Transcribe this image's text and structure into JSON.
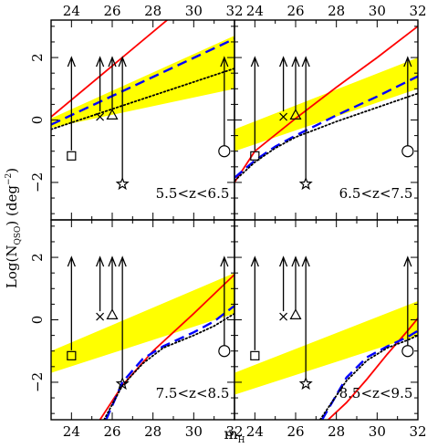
{
  "figure": {
    "xlabel": "m",
    "xlabel_sub": "H",
    "ylabel": "Log(N",
    "ylabel_sub": "QSO",
    "ylabel_tail": ")  (deg",
    "ylabel_sup": "−2",
    "ylabel_end": ")"
  },
  "axes": {
    "xlim": [
      23,
      32
    ],
    "ylim": [
      -3.2,
      3.2
    ],
    "xticks": [
      24,
      26,
      28,
      30,
      32
    ],
    "yticks": [
      -2,
      0,
      2
    ],
    "xtick_labels": [
      "24",
      "26",
      "28",
      "30",
      "32"
    ],
    "ytick_labels": [
      "−2",
      "0",
      "2"
    ]
  },
  "colors": {
    "band": "#ffff00",
    "red_line": "#ff0000",
    "blue_dashed": "#0000ff",
    "dotted": "#000000",
    "axes": "#000000"
  },
  "markers": [
    {
      "symbol": "square",
      "x": 24.0,
      "y": -1.15,
      "arrow": "up"
    },
    {
      "symbol": "cross",
      "x": 25.4,
      "y": 0.1,
      "arrow": "up"
    },
    {
      "symbol": "triangle",
      "x": 26.0,
      "y": 0.15,
      "arrow": "up"
    },
    {
      "symbol": "star",
      "x": 26.5,
      "y": -2.05,
      "arrow": "up"
    },
    {
      "symbol": "circle",
      "x": 31.5,
      "y": -1.0,
      "arrow": "up"
    }
  ],
  "chart_data": [
    {
      "type": "line",
      "panel": "top-left",
      "annotation": "5.5<z<6.5",
      "band": {
        "x": [
          23,
          32
        ],
        "lower": [
          -0.25,
          1.0
        ],
        "upper": [
          0.05,
          2.7
        ]
      },
      "series": [
        {
          "style": "red-solid",
          "x": [
            23,
            32
          ],
          "y": [
            0.1,
            5.0
          ]
        },
        {
          "style": "blue-dashed",
          "x": [
            23,
            32
          ],
          "y": [
            -0.15,
            2.6
          ]
        },
        {
          "style": "black-dotted",
          "x": [
            23,
            32
          ],
          "y": [
            -0.3,
            1.65
          ]
        }
      ]
    },
    {
      "type": "line",
      "panel": "top-right",
      "annotation": "6.5<z<7.5",
      "band": {
        "x": [
          23,
          32
        ],
        "lower": [
          -1.0,
          1.0
        ],
        "upper": [
          -0.3,
          2.0
        ]
      },
      "series": [
        {
          "style": "red-solid",
          "x": [
            23,
            24,
            26,
            28,
            30,
            32
          ],
          "y": [
            -2.0,
            -1.0,
            0.05,
            1.05,
            2.0,
            3.0
          ]
        },
        {
          "style": "blue-dashed",
          "x": [
            23,
            24,
            25,
            26,
            28,
            30,
            32
          ],
          "y": [
            -1.85,
            -1.3,
            -0.85,
            -0.5,
            0.15,
            0.75,
            1.4
          ]
        },
        {
          "style": "black-dotted",
          "x": [
            23,
            24,
            25,
            26,
            28,
            30,
            32
          ],
          "y": [
            -1.95,
            -1.35,
            -0.9,
            -0.55,
            -0.05,
            0.4,
            0.85
          ]
        }
      ]
    },
    {
      "type": "line",
      "panel": "bottom-left",
      "annotation": "7.5<z<8.5",
      "band": {
        "x": [
          23,
          32
        ],
        "lower": [
          -1.7,
          0.2
        ],
        "upper": [
          -1.0,
          1.5
        ]
      },
      "series": [
        {
          "style": "red-solid",
          "x": [
            25.4,
            26.5,
            28,
            30,
            32
          ],
          "y": [
            -3.2,
            -2.1,
            -1.0,
            0.2,
            1.45
          ]
        },
        {
          "style": "blue-dashed",
          "x": [
            25.7,
            26.5,
            27.5,
            28.5,
            30,
            31,
            32
          ],
          "y": [
            -3.2,
            -2.0,
            -1.25,
            -0.85,
            -0.4,
            -0.05,
            0.45
          ]
        },
        {
          "style": "black-dotted",
          "x": [
            25.6,
            26.5,
            27.5,
            28.5,
            30,
            31,
            32
          ],
          "y": [
            -3.2,
            -2.1,
            -1.4,
            -0.9,
            -0.5,
            -0.2,
            0.2
          ]
        }
      ]
    },
    {
      "type": "line",
      "panel": "bottom-right",
      "annotation": "8.5<z<9.5",
      "band": {
        "x": [
          23,
          32
        ],
        "lower": [
          -2.4,
          -0.5
        ],
        "upper": [
          -1.7,
          0.6
        ]
      },
      "series": [
        {
          "style": "red-solid",
          "x": [
            27.6,
            28.5,
            29.5,
            30.5,
            31.5,
            32
          ],
          "y": [
            -3.2,
            -2.65,
            -1.9,
            -1.1,
            -0.35,
            0.05
          ]
        },
        {
          "style": "blue-dashed",
          "x": [
            27.3,
            28.5,
            29.5,
            30.5,
            31.5,
            32
          ],
          "y": [
            -3.2,
            -1.85,
            -1.2,
            -0.85,
            -0.55,
            -0.35
          ]
        },
        {
          "style": "black-dotted",
          "x": [
            27.2,
            28.5,
            29.5,
            30.5,
            31.5,
            32
          ],
          "y": [
            -3.2,
            -1.95,
            -1.3,
            -0.9,
            -0.65,
            -0.5
          ]
        }
      ]
    }
  ]
}
